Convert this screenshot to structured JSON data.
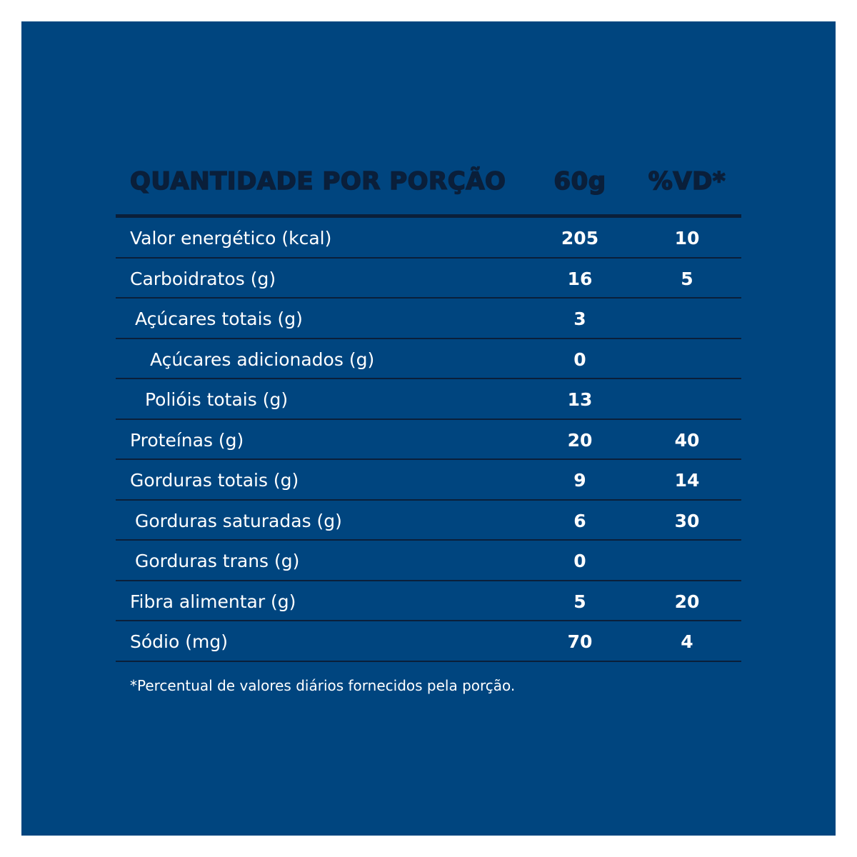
{
  "header": {
    "label": "QUANTIDADE POR PORÇÃO",
    "portion": "60g",
    "vd": "%VD*"
  },
  "rows": [
    {
      "label": "Valor energético (kcal)",
      "portion": "205",
      "vd": "10",
      "indent": 0
    },
    {
      "label": "Carboidratos (g)",
      "portion": "16",
      "vd": "5",
      "indent": 0
    },
    {
      "label": "Açúcares totais (g)",
      "portion": "3",
      "vd": "",
      "indent": 1
    },
    {
      "label": "Açúcares adicionados (g)",
      "portion": "0",
      "vd": "",
      "indent": 2
    },
    {
      "label": "Polióis totais (g)",
      "portion": "13",
      "vd": "",
      "indent": 3
    },
    {
      "label": "Proteínas (g)",
      "portion": "20",
      "vd": "40",
      "indent": 0
    },
    {
      "label": "Gorduras totais (g)",
      "portion": "9",
      "vd": "14",
      "indent": 0
    },
    {
      "label": "Gorduras saturadas (g)",
      "portion": "6",
      "vd": "30",
      "indent": 1
    },
    {
      "label": "Gorduras trans (g)",
      "portion": "0",
      "vd": "",
      "indent": 1
    },
    {
      "label": "Fibra alimentar (g)",
      "portion": "5",
      "vd": "20",
      "indent": 0
    },
    {
      "label": "Sódio (mg)",
      "portion": "70",
      "vd": "4",
      "indent": 0
    }
  ],
  "footnote": "*Percentual de valores diários fornecidos pela porção.",
  "colors": {
    "background": "#00457f",
    "rule": "#0a1f3a",
    "text": "#ffffff"
  }
}
